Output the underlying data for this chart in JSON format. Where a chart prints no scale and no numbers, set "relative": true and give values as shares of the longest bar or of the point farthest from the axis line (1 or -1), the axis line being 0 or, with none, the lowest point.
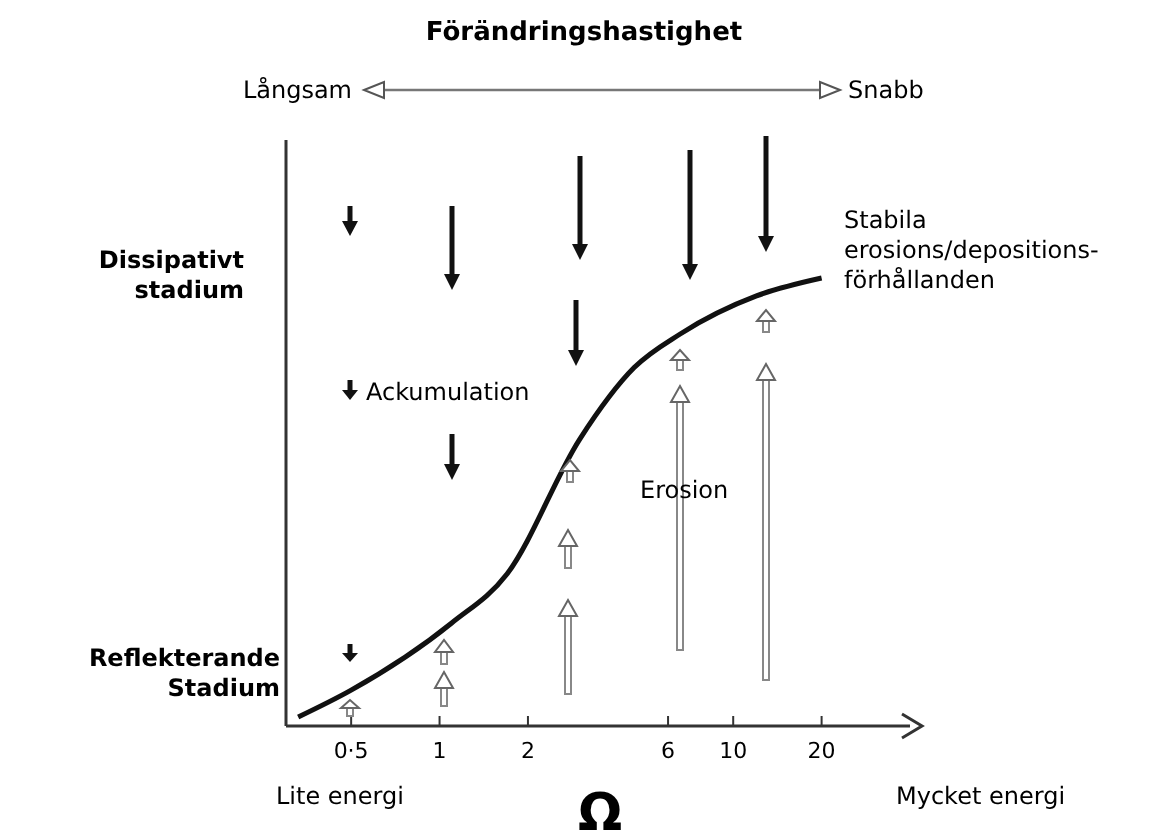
{
  "chart_data": {
    "type": "line",
    "title": "Förändringshastighet",
    "xlabel": "Ω",
    "relative": true,
    "log": "x",
    "x": [
      0.33,
      0.5,
      1.1,
      1.7,
      3,
      4.6,
      6.6,
      12,
      20
    ],
    "xlim": [
      0.3,
      40
    ],
    "xticks": [
      {
        "value": 0.5,
        "label": "0·5"
      },
      1,
      2,
      6,
      10,
      20
    ],
    "series": [
      {
        "color": "#111111",
        "values": [
          0.02,
          0.08,
          0.23,
          0.34,
          0.64,
          0.8,
          0.875,
          0.96,
          1
        ]
      }
    ],
    "marker": "none",
    "line_style": "solid",
    "annotations": [
      "Långsam",
      "Snabb",
      "Stabila\nerosions/depositions-\nförhållanden",
      "Dissipativt\nstadium",
      "Reflekterande\nStadium",
      "Ackumulation",
      "Erosion",
      "Lite energi",
      "Mycket energi"
    ]
  }
}
